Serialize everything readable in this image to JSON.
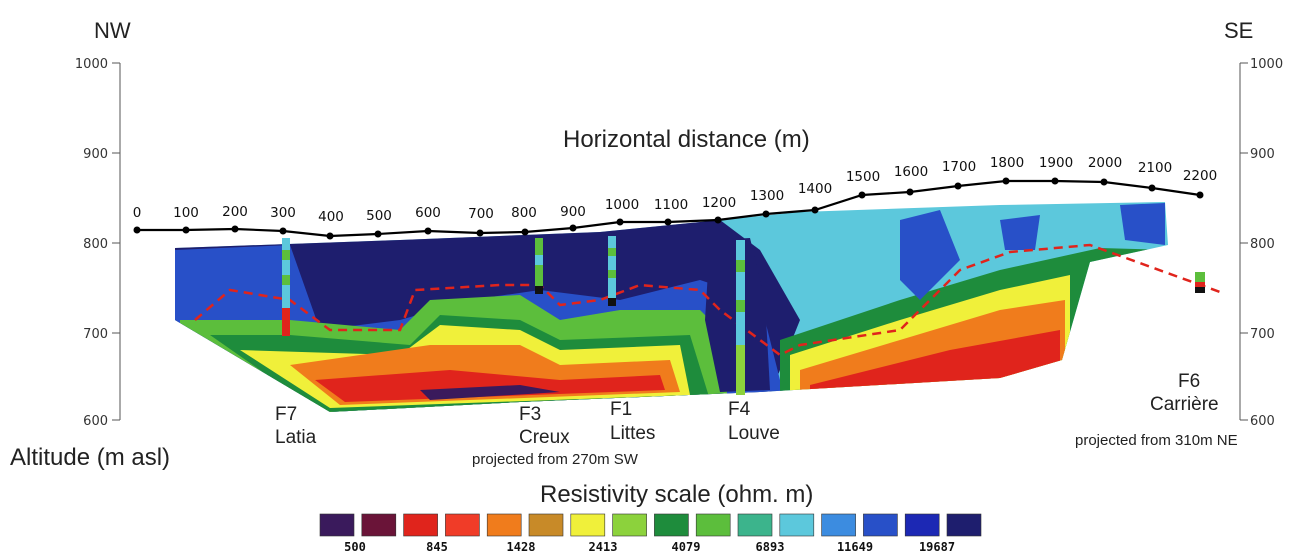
{
  "orientation": {
    "left": "NW",
    "right": "SE"
  },
  "distance_axis": {
    "title": "Horizontal distance (m)",
    "labels": [
      "0",
      "100",
      "200",
      "300",
      "400",
      "500",
      "600",
      "700",
      "800",
      "900",
      "1000",
      "1100",
      "1200",
      "1300",
      "1400",
      "1500",
      "1600",
      "1700",
      "1800",
      "1900",
      "2000",
      "2100",
      "2200"
    ]
  },
  "altitude_axis": {
    "title": "Altitude (m asl)",
    "ticks": [
      "1000",
      "900",
      "800",
      "700",
      "600"
    ]
  },
  "boreholes": [
    {
      "id": "F7",
      "name": "Latia",
      "note": ""
    },
    {
      "id": "F3",
      "name": "Creux",
      "note": ""
    },
    {
      "id": "F1",
      "name": "Littes",
      "note": "projected from 270m SW"
    },
    {
      "id": "F4",
      "name": "Louve",
      "note": ""
    },
    {
      "id": "F6",
      "name": "Carrière",
      "note": "projected from 310m NE"
    }
  ],
  "resistivity_scale": {
    "title": "Resistivity scale (ohm. m)",
    "labels": [
      "500",
      "845",
      "1428",
      "2413",
      "4079",
      "6893",
      "11649",
      "19687"
    ],
    "colors": [
      "#3a1a5c",
      "#6a1438",
      "#e0241c",
      "#f03c28",
      "#f07c1c",
      "#c88a28",
      "#f0f03a",
      "#8cd23c",
      "#1e8c3c",
      "#5cbe3c",
      "#3cb48c",
      "#5cc8dc",
      "#3c8ce0",
      "#2850c8",
      "#1c28b4",
      "#1e1e6e"
    ]
  }
}
